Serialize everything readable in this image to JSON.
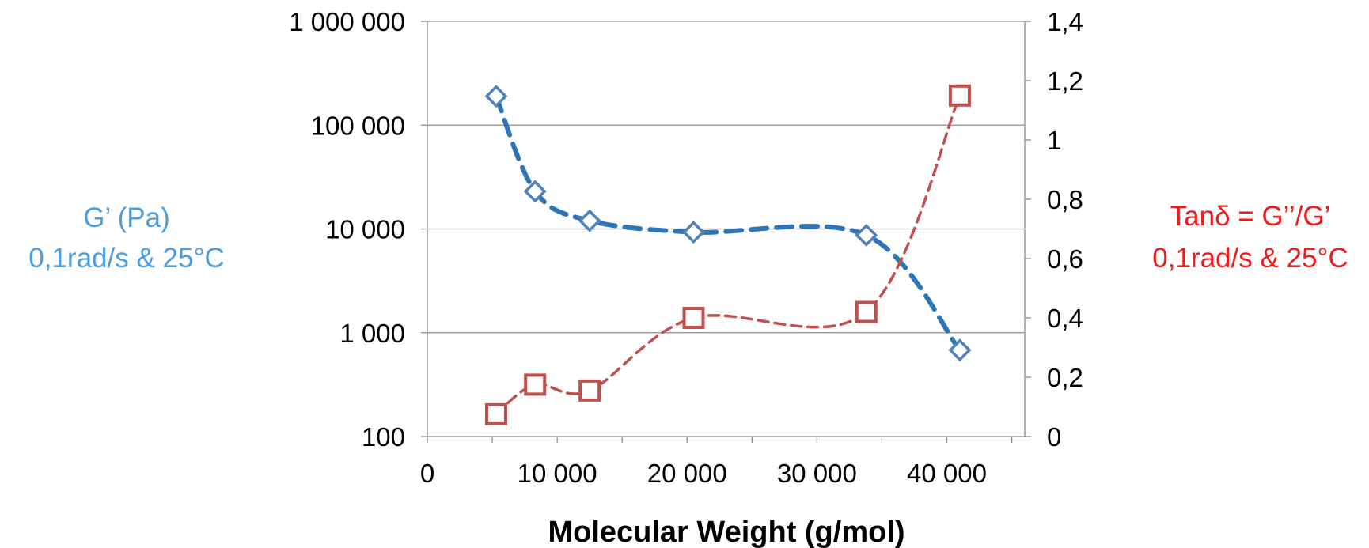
{
  "chart_data": {
    "type": "line",
    "title": "",
    "xlabel": "Molecular Weight (g/mol)",
    "ylabel_left": [
      "G’ (Pa)",
      "0,1rad/s & 25°C"
    ],
    "ylabel_right": [
      "Tanδ =  G’’/G’",
      "0,1rad/s & 25°C"
    ],
    "xlim": [
      0,
      46000
    ],
    "x_ticks": [
      0,
      10000,
      20000,
      30000,
      40000
    ],
    "x_tick_labels": [
      "0",
      "10 000",
      "20 000",
      "30 000",
      "40 000"
    ],
    "y_left_scale": "log",
    "y_left_lim": [
      100,
      1000000
    ],
    "y_left_ticks": [
      100,
      1000,
      10000,
      100000,
      1000000
    ],
    "y_left_tick_labels": [
      "100",
      "1 000",
      "10 000",
      "100 000",
      "1 000 000"
    ],
    "y_right_lim": [
      0,
      1.4
    ],
    "y_right_ticks": [
      0,
      0.2,
      0.4,
      0.6,
      0.8,
      1.0,
      1.2,
      1.4
    ],
    "y_right_tick_labels": [
      "0",
      "0,2",
      "0,4",
      "0,6",
      "0,8",
      "1",
      "1,2",
      "1,4"
    ],
    "grid": "horizontal",
    "series": [
      {
        "axis": "left",
        "marker": "diamond",
        "color": "#2e75b6",
        "marker_color": "#4f81bd",
        "x": [
          5300,
          8300,
          12500,
          20500,
          33800,
          41000
        ],
        "y": [
          190000,
          23000,
          12000,
          9300,
          8700,
          680
        ]
      },
      {
        "axis": "right",
        "marker": "square",
        "color": "#c0504d",
        "marker_color": "#c0504d",
        "x": [
          5300,
          8300,
          12500,
          20500,
          33800,
          41000
        ],
        "y": [
          0.075,
          0.175,
          0.155,
          0.4,
          0.42,
          1.15
        ]
      }
    ]
  }
}
